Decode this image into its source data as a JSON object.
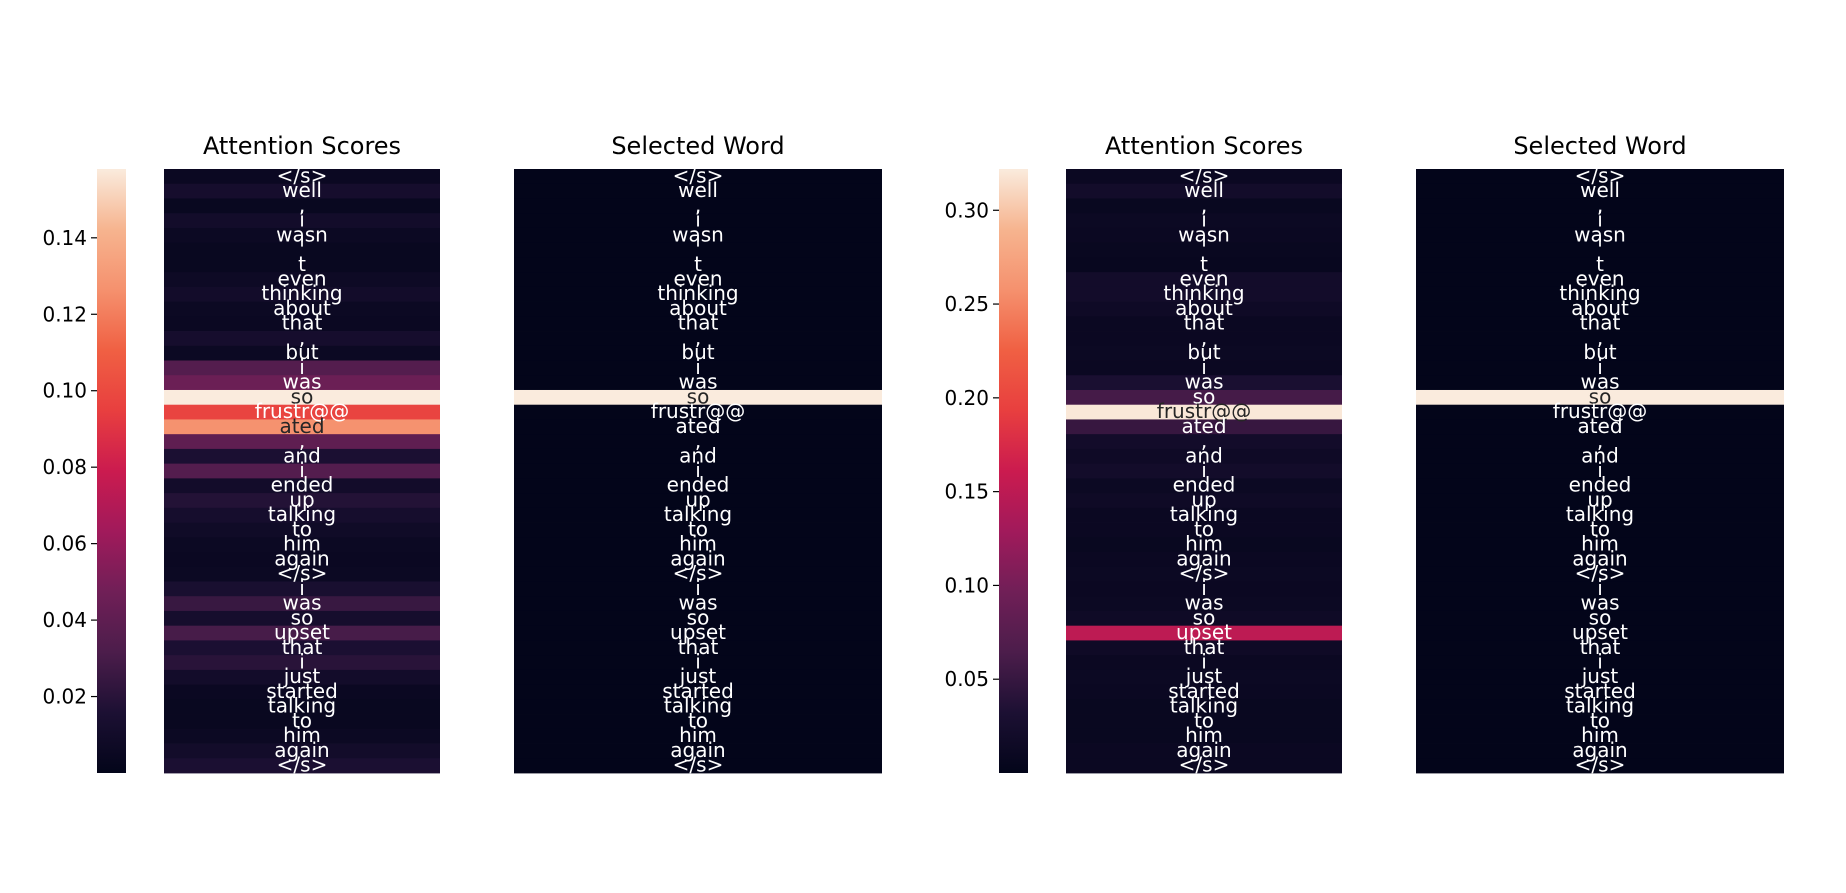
{
  "chart_data": [
    {
      "type": "heatmap",
      "title": "Attention Scores",
      "colormap": "rocket",
      "colorbar": {
        "vmin": 0.0,
        "vmax": 0.158,
        "ticks": [
          0.02,
          0.04,
          0.06,
          0.08,
          0.1,
          0.12,
          0.14
        ],
        "tick_labels": [
          "0.02",
          "0.04",
          "0.06",
          "0.08",
          "0.10",
          "0.12",
          "0.14"
        ]
      },
      "tokens": [
        "</s>",
        "well",
        ",",
        "i",
        "wasn",
        "'",
        "t",
        "even",
        "thinking",
        "about",
        "that",
        ",",
        "but",
        "i",
        "was",
        "so",
        "frustr@@",
        "ated",
        ",",
        "and",
        "i",
        "ended",
        "up",
        "talking",
        "to",
        "him",
        "again",
        "</s>",
        "i",
        "was",
        "so",
        "upset",
        "that",
        "i",
        "just",
        "started",
        "talking",
        "to",
        "him",
        "again",
        "</s>"
      ],
      "values": [
        0.005,
        0.012,
        0.004,
        0.01,
        0.006,
        0.004,
        0.004,
        0.007,
        0.01,
        0.006,
        0.005,
        0.012,
        0.006,
        0.035,
        0.045,
        0.158,
        0.097,
        0.127,
        0.04,
        0.015,
        0.035,
        0.01,
        0.018,
        0.012,
        0.008,
        0.006,
        0.005,
        0.006,
        0.014,
        0.025,
        0.012,
        0.03,
        0.015,
        0.02,
        0.01,
        0.005,
        0.004,
        0.004,
        0.006,
        0.01,
        0.015
      ]
    },
    {
      "type": "heatmap",
      "title": "Selected Word",
      "tokens": [
        "</s>",
        "well",
        ",",
        "i",
        "wasn",
        "'",
        "t",
        "even",
        "thinking",
        "about",
        "that",
        ",",
        "but",
        "i",
        "was",
        "so",
        "frustr@@",
        "ated",
        ",",
        "and",
        "i",
        "ended",
        "up",
        "talking",
        "to",
        "him",
        "again",
        "</s>",
        "i",
        "was",
        "so",
        "upset",
        "that",
        "i",
        "just",
        "started",
        "talking",
        "to",
        "him",
        "again",
        "</s>"
      ],
      "selected_index": 15
    },
    {
      "type": "heatmap",
      "title": "Attention Scores",
      "colormap": "rocket",
      "colorbar": {
        "vmin": 0.0,
        "vmax": 0.322,
        "ticks": [
          0.05,
          0.1,
          0.15,
          0.2,
          0.25,
          0.3
        ],
        "tick_labels": [
          "0.05",
          "0.10",
          "0.15",
          "0.20",
          "0.25",
          "0.30"
        ]
      },
      "tokens": [
        "</s>",
        "well",
        ",",
        "i",
        "wasn",
        "'",
        "t",
        "even",
        "thinking",
        "about",
        "that",
        ",",
        "but",
        "i",
        "was",
        "so",
        "frustr@@",
        "ated",
        ",",
        "and",
        "i",
        "ended",
        "up",
        "talking",
        "to",
        "him",
        "again",
        "</s>",
        "i",
        "was",
        "so",
        "upset",
        "that",
        "i",
        "just",
        "started",
        "talking",
        "to",
        "him",
        "again",
        "</s>"
      ],
      "values": [
        0.01,
        0.02,
        0.008,
        0.012,
        0.01,
        0.008,
        0.006,
        0.02,
        0.02,
        0.015,
        0.01,
        0.01,
        0.012,
        0.01,
        0.03,
        0.06,
        0.32,
        0.05,
        0.02,
        0.015,
        0.02,
        0.012,
        0.015,
        0.01,
        0.01,
        0.008,
        0.01,
        0.012,
        0.01,
        0.012,
        0.015,
        0.15,
        0.015,
        0.01,
        0.012,
        0.01,
        0.008,
        0.008,
        0.008,
        0.01,
        0.01
      ]
    },
    {
      "type": "heatmap",
      "title": "Selected Word",
      "tokens": [
        "</s>",
        "well",
        ",",
        "i",
        "wasn",
        "'",
        "t",
        "even",
        "thinking",
        "about",
        "that",
        ",",
        "but",
        "i",
        "was",
        "so",
        "frustr@@",
        "ated",
        ",",
        "and",
        "i",
        "ended",
        "up",
        "talking",
        "to",
        "him",
        "again",
        "</s>",
        "i",
        "was",
        "so",
        "upset",
        "that",
        "i",
        "just",
        "started",
        "talking",
        "to",
        "him",
        "again",
        "</s>"
      ],
      "selected_index": 15
    }
  ]
}
